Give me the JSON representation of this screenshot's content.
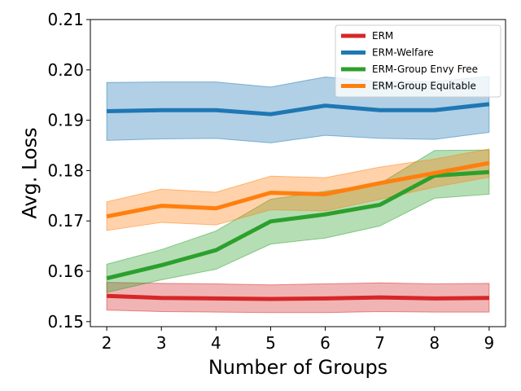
{
  "chart_data": {
    "type": "line",
    "title": "",
    "xlabel": "Number of Groups",
    "ylabel": "Avg. Loss",
    "x": [
      2,
      3,
      4,
      5,
      6,
      7,
      8,
      9
    ],
    "xlim": [
      1.7,
      9.3
    ],
    "ylim": [
      0.149,
      0.21
    ],
    "x_ticks": [
      "2",
      "3",
      "4",
      "5",
      "6",
      "7",
      "8",
      "9"
    ],
    "y_ticks": [
      "0.15",
      "0.16",
      "0.17",
      "0.18",
      "0.19",
      "0.20",
      "0.21"
    ],
    "y_tick_values": [
      0.15,
      0.16,
      0.17,
      0.18,
      0.19,
      0.2,
      0.21
    ],
    "grid": false,
    "legend_position": "top-right",
    "series": [
      {
        "name": "ERM",
        "color": "#d62728",
        "values": [
          0.1551,
          0.1547,
          0.1546,
          0.1545,
          0.1546,
          0.1548,
          0.1546,
          0.1547
        ],
        "lower": [
          0.1523,
          0.152,
          0.1519,
          0.1518,
          0.1518,
          0.152,
          0.1519,
          0.1519
        ],
        "upper": [
          0.1578,
          0.1576,
          0.1575,
          0.1573,
          0.1575,
          0.1577,
          0.1575,
          0.1576
        ]
      },
      {
        "name": "ERM-Welfare",
        "color": "#1f77b4",
        "values": [
          0.1918,
          0.192,
          0.192,
          0.1912,
          0.1929,
          0.192,
          0.192,
          0.1932
        ],
        "lower": [
          0.186,
          0.1863,
          0.1864,
          0.1855,
          0.187,
          0.1864,
          0.1862,
          0.1876
        ],
        "upper": [
          0.1975,
          0.1976,
          0.1976,
          0.1966,
          0.1986,
          0.1977,
          0.1977,
          0.1987
        ]
      },
      {
        "name": "ERM-Group Envy Free",
        "color": "#2ca02c",
        "values": [
          0.1586,
          0.1612,
          0.1642,
          0.1699,
          0.1713,
          0.1732,
          0.179,
          0.1797
        ],
        "lower": [
          0.1558,
          0.1583,
          0.1604,
          0.1654,
          0.1666,
          0.169,
          0.1745,
          0.1753
        ],
        "upper": [
          0.1614,
          0.1643,
          0.168,
          0.1743,
          0.1759,
          0.1774,
          0.184,
          0.1841
        ]
      },
      {
        "name": "ERM-Group Equitable",
        "color": "#ff7f0e",
        "values": [
          0.1709,
          0.173,
          0.1725,
          0.1756,
          0.1753,
          0.1775,
          0.1795,
          0.1815
        ],
        "lower": [
          0.1681,
          0.1697,
          0.1692,
          0.1722,
          0.172,
          0.1743,
          0.1767,
          0.1787
        ],
        "upper": [
          0.1738,
          0.1763,
          0.1757,
          0.1789,
          0.1786,
          0.1807,
          0.1823,
          0.1843
        ]
      }
    ]
  }
}
